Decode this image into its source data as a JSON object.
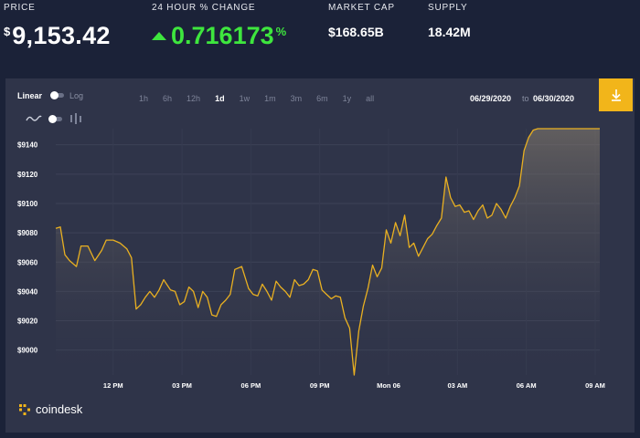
{
  "stats": {
    "price": {
      "label": "PRICE",
      "currency": "$",
      "value": "9,153.42"
    },
    "change": {
      "label": "24 HOUR % CHANGE",
      "value": "0.716173",
      "unit": "%",
      "direction": "up",
      "color": "#3ee63e"
    },
    "market_cap": {
      "label": "MARKET CAP",
      "value": "$168.65B"
    },
    "supply": {
      "label": "SUPPLY",
      "value": "18.42M"
    }
  },
  "toolbar": {
    "scale_linear": "Linear",
    "scale_log": "Log",
    "ranges": [
      {
        "label": "1h",
        "active": false
      },
      {
        "label": "6h",
        "active": false
      },
      {
        "label": "12h",
        "active": false
      },
      {
        "label": "1d",
        "active": true
      },
      {
        "label": "1w",
        "active": false
      },
      {
        "label": "1m",
        "active": false
      },
      {
        "label": "3m",
        "active": false
      },
      {
        "label": "6m",
        "active": false
      },
      {
        "label": "1y",
        "active": false
      },
      {
        "label": "all",
        "active": false
      }
    ],
    "date_from": "06/29/2020",
    "date_sep": "to",
    "date_to": "06/30/2020",
    "download_icon": "download-icon",
    "accent_color": "#f2b51a"
  },
  "chart_data": {
    "type": "area",
    "title": "",
    "xlabel": "",
    "ylabel": "",
    "ylim": [
      8983,
      9151
    ],
    "x_range": [
      0,
      23.7
    ],
    "yticks": [
      9000,
      9020,
      9040,
      9060,
      9080,
      9100,
      9120,
      9140
    ],
    "ytick_labels": [
      "$9000",
      "$9020",
      "$9040",
      "$9060",
      "$9080",
      "$9100",
      "$9120",
      "$9140"
    ],
    "xticks": [
      2.5,
      5.5,
      8.5,
      11.5,
      14.5,
      17.5,
      20.5,
      23.5
    ],
    "xtick_labels": [
      "12 PM",
      "03 PM",
      "06 PM",
      "09 PM",
      "Mon 06",
      "03 AM",
      "06 AM",
      "09 AM"
    ],
    "line_color": "#e9b021",
    "grid": true,
    "series": [
      {
        "x": [
          0,
          0.2,
          0.4,
          0.6,
          0.9,
          1.1,
          1.4,
          1.7,
          2.0,
          2.2,
          2.5,
          2.8,
          3.1,
          3.3,
          3.5,
          3.7,
          3.9,
          4.1,
          4.3,
          4.5,
          4.7,
          5.0,
          5.2,
          5.4,
          5.6,
          5.8,
          6.0,
          6.2,
          6.4,
          6.6,
          6.8,
          7.0,
          7.2,
          7.4,
          7.6,
          7.8,
          8.1,
          8.4,
          8.6,
          8.8,
          9.0,
          9.2,
          9.4,
          9.6,
          9.8,
          10.0,
          10.2,
          10.4,
          10.6,
          10.8,
          11.0,
          11.2,
          11.4,
          11.6,
          11.8,
          12.0,
          12.2,
          12.4,
          12.6,
          12.8,
          13.0,
          13.2,
          13.4,
          13.6,
          13.8,
          14.0,
          14.2,
          14.4,
          14.6,
          14.8,
          15.0,
          15.2,
          15.4,
          15.6,
          15.8,
          16.0,
          16.2,
          16.4,
          16.6,
          16.8,
          17.0,
          17.2,
          17.4,
          17.6,
          17.8,
          18.0,
          18.2,
          18.4,
          18.6,
          18.8,
          19.0,
          19.2,
          19.4,
          19.6,
          19.8,
          20.0,
          20.2,
          20.4,
          20.6,
          20.8,
          21.0,
          21.2,
          21.4,
          21.6,
          21.8,
          22.0,
          22.2,
          22.4,
          22.6,
          22.8,
          23.0,
          23.2,
          23.4,
          23.6,
          23.7
        ],
        "values": [
          9083,
          9084,
          9065,
          9061,
          9057,
          9071,
          9071,
          9061,
          9068,
          9075,
          9075,
          9073,
          9069,
          9063,
          9028,
          9031,
          9036,
          9040,
          9036,
          9041,
          9048,
          9041,
          9040,
          9031,
          9033,
          9043,
          9040,
          9029,
          9040,
          9036,
          9024,
          9023,
          9031,
          9034,
          9038,
          9055,
          9057,
          9042,
          9038,
          9037,
          9045,
          9040,
          9034,
          9047,
          9043,
          9040,
          9036,
          9048,
          9044,
          9045,
          9048,
          9055,
          9054,
          9041,
          9038,
          9035,
          9037,
          9036,
          9022,
          9015,
          8983,
          9013,
          9030,
          9042,
          9058,
          9050,
          9056,
          9082,
          9073,
          9087,
          9078,
          9092,
          9070,
          9073,
          9064,
          9070,
          9076,
          9079,
          9085,
          9090,
          9118,
          9104,
          9098,
          9099,
          9094,
          9095,
          9089,
          9095,
          9099,
          9090,
          9092,
          9100,
          9096,
          9090,
          9098,
          9104,
          9112,
          9136,
          9145,
          9150,
          9151,
          9151,
          9151,
          9151,
          9151,
          9151,
          9151,
          9151,
          9151,
          9151,
          9151,
          9151,
          9151,
          9151,
          9151
        ]
      }
    ]
  },
  "brand": {
    "name": "coindesk",
    "logo_icon": "coindesk-logo-icon"
  }
}
